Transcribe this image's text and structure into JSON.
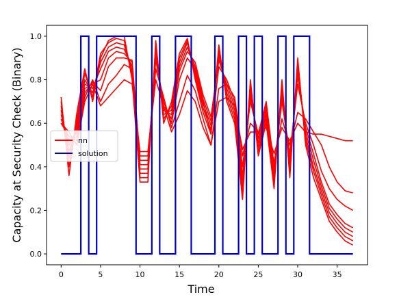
{
  "chart_data": {
    "type": "line",
    "xlabel": "Time",
    "ylabel": "Capacity at Security Check (Binary)",
    "xlim": [
      -1.85,
      38.85
    ],
    "ylim": [
      -0.05,
      1.05
    ],
    "xticks": [
      0,
      5,
      10,
      15,
      20,
      25,
      30,
      35
    ],
    "yticks": [
      0.0,
      0.2,
      0.4,
      0.6,
      0.8,
      1.0
    ],
    "xtick_labels": [
      "0",
      "5",
      "10",
      "15",
      "20",
      "25",
      "30",
      "35"
    ],
    "ytick_labels": [
      "0.0",
      "0.2",
      "0.4",
      "0.6",
      "0.8",
      "1.0"
    ],
    "grid": false,
    "legend_position": "center-left",
    "legend": [
      {
        "name": "nn",
        "color": "#ff0000"
      },
      {
        "name": "solution",
        "color": "#0000cc"
      }
    ],
    "x": [
      0,
      1,
      2,
      3,
      4,
      5,
      6,
      7,
      8,
      9,
      10,
      11,
      12,
      13,
      14,
      15,
      16,
      17,
      18,
      19,
      20,
      21,
      22,
      23,
      24,
      25,
      26,
      27,
      28,
      29,
      30,
      31,
      32,
      33,
      34,
      35,
      36,
      37
    ],
    "solution": {
      "color": "#0000cc",
      "values": [
        0,
        0,
        0,
        1,
        0,
        1,
        1,
        1,
        1,
        1,
        0,
        0,
        1,
        0,
        0,
        1,
        1,
        0,
        0,
        0,
        1,
        0,
        0,
        1,
        0,
        1,
        0,
        0,
        1,
        0,
        1,
        1,
        0,
        0,
        0,
        0,
        0,
        0
      ]
    },
    "nn": {
      "color": "#ff0000",
      "series": [
        {
          "values": [
            0.72,
            0.36,
            0.65,
            0.85,
            0.7,
            0.9,
            0.98,
            1.0,
            1.0,
            0.8,
            0.33,
            0.33,
            0.98,
            0.6,
            0.7,
            0.92,
            0.99,
            0.8,
            0.65,
            0.55,
            0.96,
            0.7,
            0.6,
            0.25,
            0.8,
            0.45,
            0.6,
            0.3,
            0.8,
            0.35,
            0.9,
            0.5,
            0.35,
            0.25,
            0.15,
            0.1,
            0.06,
            0.04
          ]
        },
        {
          "values": [
            0.7,
            0.4,
            0.62,
            0.83,
            0.72,
            0.92,
            0.97,
            0.99,
            0.98,
            0.82,
            0.35,
            0.35,
            0.97,
            0.62,
            0.68,
            0.9,
            0.98,
            0.82,
            0.67,
            0.57,
            0.95,
            0.72,
            0.62,
            0.28,
            0.78,
            0.47,
            0.62,
            0.32,
            0.78,
            0.37,
            0.88,
            0.52,
            0.38,
            0.27,
            0.17,
            0.12,
            0.08,
            0.06
          ]
        },
        {
          "values": [
            0.68,
            0.44,
            0.6,
            0.8,
            0.74,
            0.88,
            0.95,
            0.97,
            0.96,
            0.84,
            0.37,
            0.37,
            0.95,
            0.64,
            0.66,
            0.88,
            0.97,
            0.84,
            0.69,
            0.59,
            0.93,
            0.74,
            0.64,
            0.31,
            0.76,
            0.49,
            0.64,
            0.34,
            0.76,
            0.39,
            0.86,
            0.54,
            0.4,
            0.29,
            0.19,
            0.14,
            0.1,
            0.08
          ]
        },
        {
          "values": [
            0.66,
            0.47,
            0.58,
            0.78,
            0.76,
            0.85,
            0.93,
            0.95,
            0.94,
            0.86,
            0.39,
            0.39,
            0.93,
            0.66,
            0.64,
            0.86,
            0.95,
            0.86,
            0.71,
            0.61,
            0.91,
            0.76,
            0.66,
            0.33,
            0.74,
            0.51,
            0.66,
            0.36,
            0.74,
            0.41,
            0.84,
            0.56,
            0.43,
            0.31,
            0.21,
            0.16,
            0.12,
            0.1
          ]
        },
        {
          "values": [
            0.64,
            0.5,
            0.56,
            0.76,
            0.78,
            0.8,
            0.9,
            0.93,
            0.92,
            0.88,
            0.41,
            0.41,
            0.91,
            0.68,
            0.62,
            0.84,
            0.93,
            0.88,
            0.73,
            0.63,
            0.89,
            0.78,
            0.68,
            0.36,
            0.72,
            0.53,
            0.68,
            0.38,
            0.72,
            0.43,
            0.82,
            0.58,
            0.46,
            0.33,
            0.23,
            0.18,
            0.14,
            0.12
          ]
        },
        {
          "values": [
            0.62,
            0.52,
            0.54,
            0.74,
            0.79,
            0.75,
            0.86,
            0.9,
            0.9,
            0.89,
            0.43,
            0.43,
            0.89,
            0.7,
            0.6,
            0.8,
            0.9,
            0.85,
            0.7,
            0.55,
            0.86,
            0.8,
            0.7,
            0.4,
            0.7,
            0.55,
            0.7,
            0.4,
            0.7,
            0.46,
            0.78,
            0.6,
            0.5,
            0.38,
            0.3,
            0.25,
            0.22,
            0.2
          ]
        },
        {
          "values": [
            0.6,
            0.54,
            0.52,
            0.72,
            0.8,
            0.7,
            0.78,
            0.82,
            0.87,
            0.85,
            0.45,
            0.45,
            0.85,
            0.72,
            0.58,
            0.7,
            0.82,
            0.75,
            0.62,
            0.5,
            0.76,
            0.78,
            0.72,
            0.45,
            0.6,
            0.56,
            0.62,
            0.42,
            0.62,
            0.5,
            0.65,
            0.62,
            0.56,
            0.5,
            0.4,
            0.33,
            0.29,
            0.28
          ]
        },
        {
          "values": [
            0.6,
            0.56,
            0.5,
            0.7,
            0.78,
            0.68,
            0.72,
            0.76,
            0.8,
            0.78,
            0.47,
            0.47,
            0.8,
            0.68,
            0.56,
            0.64,
            0.75,
            0.7,
            0.58,
            0.5,
            0.7,
            0.72,
            0.68,
            0.48,
            0.56,
            0.56,
            0.58,
            0.46,
            0.58,
            0.52,
            0.6,
            0.56,
            0.55,
            0.55,
            0.54,
            0.53,
            0.52,
            0.52
          ]
        }
      ]
    }
  }
}
